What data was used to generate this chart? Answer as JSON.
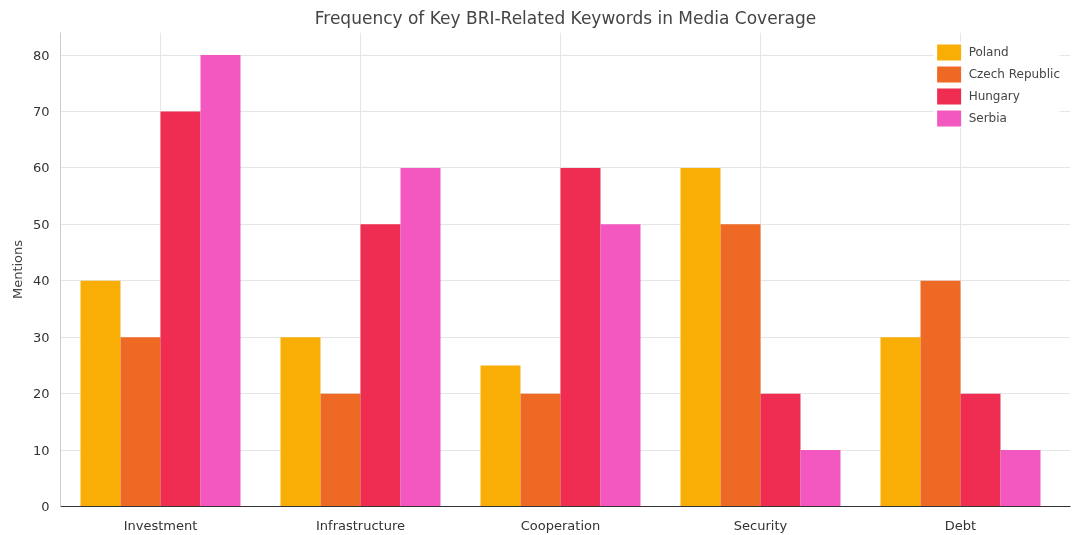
{
  "chart_data": {
    "type": "bar",
    "title": "Frequency of Key BRI-Related Keywords in Media Coverage",
    "ylabel": "Mentions",
    "categories": [
      "Investment",
      "Infrastructure",
      "Cooperation",
      "Security",
      "Debt"
    ],
    "series": [
      {
        "name": "Poland",
        "color": "#f9ae06",
        "values": [
          40,
          30,
          25,
          60,
          30
        ]
      },
      {
        "name": "Czech Republic",
        "color": "#ee6a24",
        "values": [
          30,
          20,
          20,
          50,
          40
        ]
      },
      {
        "name": "Hungary",
        "color": "#ef2d52",
        "values": [
          70,
          50,
          60,
          20,
          20
        ]
      },
      {
        "name": "Serbia",
        "color": "#f358c0",
        "values": [
          80,
          60,
          50,
          10,
          10
        ]
      }
    ],
    "ylim": [
      0,
      84
    ],
    "yticks": [
      0,
      10,
      20,
      30,
      40,
      50,
      60,
      70,
      80
    ],
    "grid": true,
    "legend": "top right"
  }
}
